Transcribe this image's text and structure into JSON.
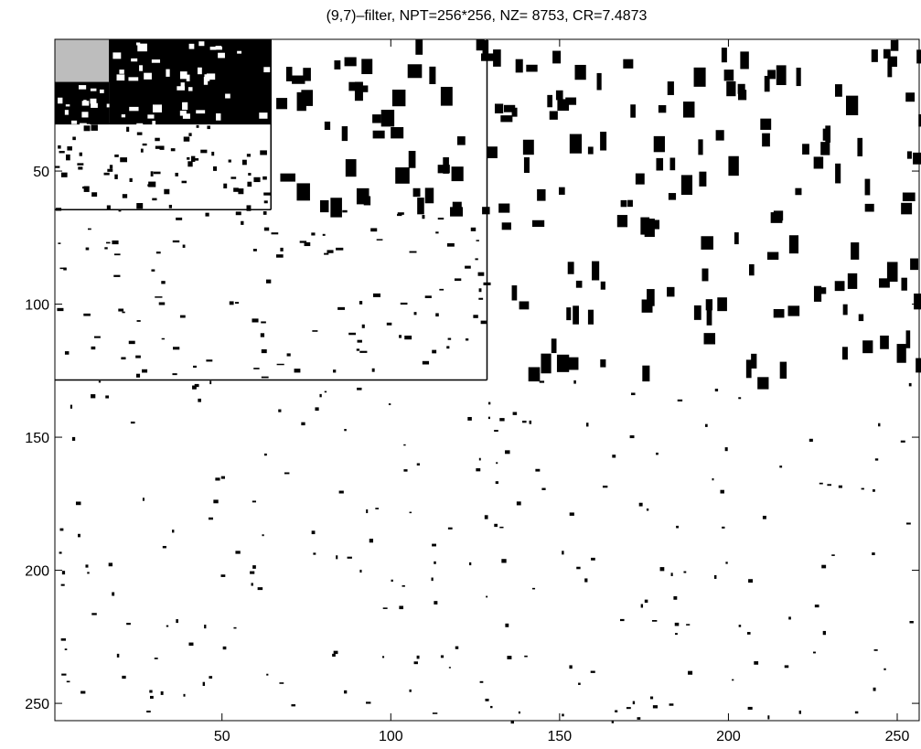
{
  "chart_data": {
    "type": "image",
    "title": "(9,7)–filter, NPT=256*256, NZ= 8753, CR=7.4873",
    "xlim": [
      0.5,
      256.5
    ],
    "ylim": [
      256.5,
      0.5
    ],
    "y_reversed": true,
    "xticks": [
      50,
      100,
      150,
      200,
      250
    ],
    "yticks": [
      50,
      100,
      150,
      200,
      250
    ],
    "grid": false
  }
}
